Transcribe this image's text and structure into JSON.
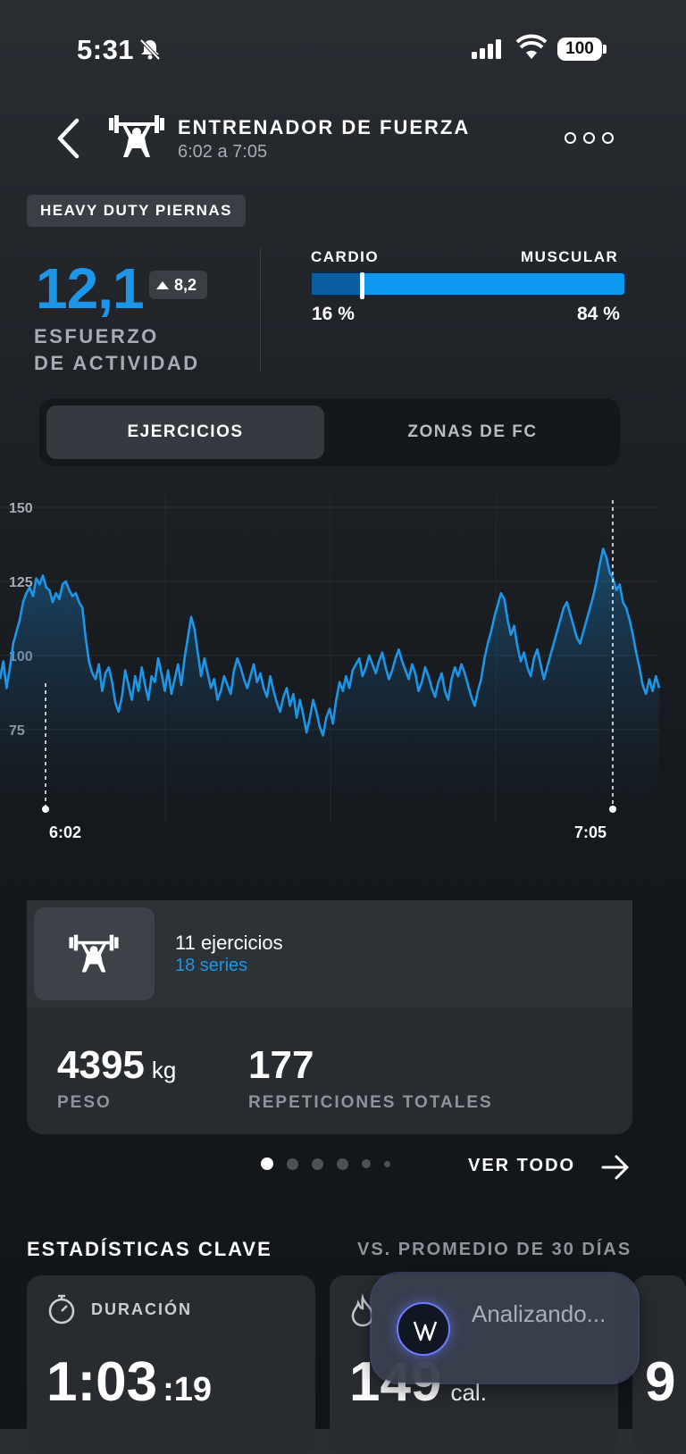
{
  "status_bar": {
    "time": "5:31",
    "battery": "100"
  },
  "header": {
    "title": "ENTRENADOR DE FUERZA",
    "subtitle": "6:02 a 7:05"
  },
  "tag": "HEAVY DUTY PIERNAS",
  "effort": {
    "value": "12,1",
    "delta": "8,2",
    "label_line1": "ESFUERZO",
    "label_line2": "DE ACTIVIDAD"
  },
  "cardio_muscular": {
    "left_label": "CARDIO",
    "right_label": "MUSCULAR",
    "left_pct": "16 %",
    "right_pct": "84 %",
    "cardio_fraction": 0.16,
    "cardio_color": "#0a5fa0",
    "muscular_color": "#0d99ee"
  },
  "tabs": [
    {
      "label": "EJERCICIOS",
      "active": true
    },
    {
      "label": "ZONAS DE FC",
      "active": false
    }
  ],
  "chart_data": {
    "type": "line",
    "y_ticks": [
      "150",
      "125",
      "100",
      "75"
    ],
    "ylim": [
      65,
      150
    ],
    "start_label": "6:02",
    "end_label": "7:05",
    "line_color": "#1e96e8",
    "series": [
      {
        "values": [
          92,
          98,
          89,
          96,
          104,
          108,
          112,
          118,
          121,
          123,
          120,
          126,
          124,
          127,
          123,
          122,
          118,
          121,
          119,
          124,
          125,
          122,
          120,
          121,
          118,
          116,
          106,
          98,
          94,
          92,
          97,
          88,
          94,
          96,
          91,
          84,
          81,
          86,
          95,
          90,
          85,
          93,
          88,
          96,
          90,
          85,
          93,
          91,
          99,
          94,
          88,
          95,
          87,
          92,
          97,
          90,
          99,
          106,
          113,
          109,
          101,
          93,
          99,
          94,
          89,
          92,
          85,
          88,
          93,
          90,
          87,
          95,
          99,
          96,
          92,
          89,
          93,
          97,
          91,
          94,
          89,
          86,
          93,
          88,
          84,
          81,
          86,
          89,
          83,
          87,
          79,
          85,
          80,
          74,
          79,
          85,
          81,
          76,
          73,
          79,
          82,
          77,
          85,
          91,
          88,
          93,
          89,
          95,
          97,
          99,
          93,
          96,
          100,
          97,
          94,
          98,
          101,
          96,
          92,
          95,
          99,
          102,
          98,
          95,
          92,
          97,
          94,
          88,
          91,
          96,
          93,
          89,
          86,
          91,
          94,
          88,
          85,
          92,
          96,
          93,
          97,
          94,
          90,
          86,
          83,
          88,
          92,
          99,
          104,
          108,
          113,
          117,
          121,
          119,
          112,
          107,
          110,
          103,
          98,
          101,
          96,
          93,
          99,
          102,
          97,
          92,
          96,
          100,
          104,
          108,
          112,
          116,
          118,
          114,
          110,
          106,
          104,
          108,
          112,
          116,
          120,
          125,
          131,
          136,
          133,
          128,
          126,
          122,
          124,
          118,
          116,
          112,
          107,
          101,
          96,
          90,
          87,
          92,
          88,
          93,
          89
        ]
      }
    ]
  },
  "exercises_card": {
    "count": "11 ejercicios",
    "series": "18 series",
    "weight_value": "4395",
    "weight_unit": "kg",
    "weight_label": "PESO",
    "reps_value": "177",
    "reps_label": "REPETICIONES TOTALES"
  },
  "see_all": "VER TODO",
  "stats": {
    "title": "ESTADÍSTICAS CLAVE",
    "vs": "VS. PROMEDIO DE 30 DÍAS",
    "duration_label": "DURACIÓN",
    "duration_value": "1:03",
    "duration_seconds": ":19",
    "calories_value": "149",
    "calories_unit": "cal.",
    "third_value": "9"
  },
  "toast": {
    "text": "Analizando..."
  }
}
